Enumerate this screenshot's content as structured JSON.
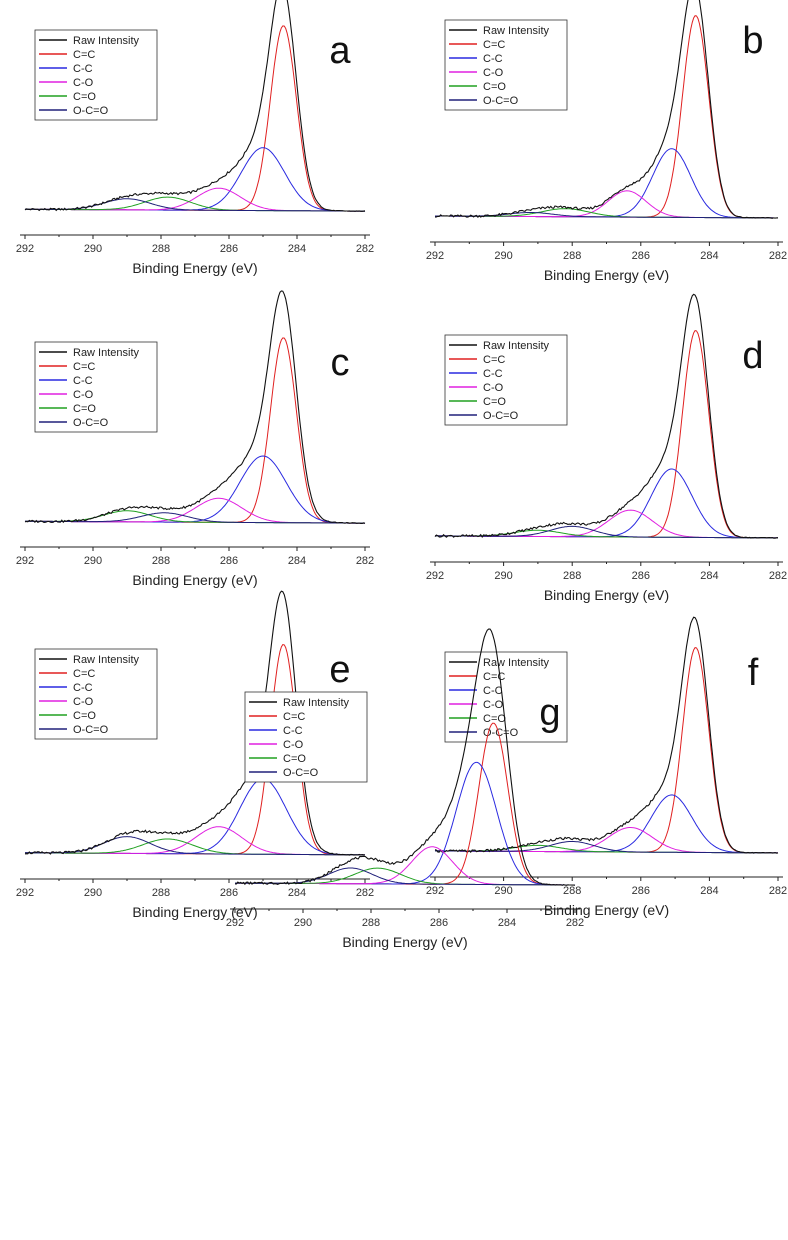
{
  "figure": {
    "series_names": [
      "Raw Intensity",
      "C=C",
      "C-C",
      "C-O",
      "C=O",
      "O-C=O"
    ],
    "colors": {
      "Raw Intensity": "#111111",
      "C=C": "#e02020",
      "C-C": "#2a2ae0",
      "C-O": "#e020e0",
      "C=O": "#20a020",
      "O-C=O": "#20207a"
    }
  },
  "chart_data": [
    {
      "panel": "a",
      "type": "line",
      "xlabel": "Binding Energy (eV)",
      "xlim": [
        292,
        282
      ],
      "x_reversed": true,
      "xticks": [
        292,
        290,
        288,
        286,
        284,
        282
      ],
      "grid": false,
      "legend_position": "top-left",
      "peaks": [
        {
          "name": "C=C",
          "center": 284.4,
          "fwhm": 0.9,
          "height": 1.0
        },
        {
          "name": "C-C",
          "center": 285.0,
          "fwhm": 1.5,
          "height": 0.34
        },
        {
          "name": "C-O",
          "center": 286.3,
          "fwhm": 1.5,
          "height": 0.12
        },
        {
          "name": "C=O",
          "center": 287.8,
          "fwhm": 1.6,
          "height": 0.07
        },
        {
          "name": "O-C=O",
          "center": 289.0,
          "fwhm": 1.6,
          "height": 0.06
        }
      ],
      "baseline": [
        0.02,
        0.01
      ]
    },
    {
      "panel": "b",
      "type": "line",
      "xlabel": "Binding Energy (eV)",
      "xlim": [
        292,
        282
      ],
      "x_reversed": true,
      "xticks": [
        292,
        290,
        288,
        286,
        284,
        282
      ],
      "grid": false,
      "legend_position": "top-left",
      "peaks": [
        {
          "name": "C=C",
          "center": 284.4,
          "fwhm": 0.9,
          "height": 1.0
        },
        {
          "name": "C-C",
          "center": 285.1,
          "fwhm": 1.3,
          "height": 0.34
        },
        {
          "name": "C-O",
          "center": 286.4,
          "fwhm": 1.3,
          "height": 0.13
        },
        {
          "name": "C=O",
          "center": 288.2,
          "fwhm": 1.6,
          "height": 0.04
        },
        {
          "name": "O-C=O",
          "center": 289.2,
          "fwhm": 1.5,
          "height": 0.02
        }
      ],
      "baseline": [
        0.02,
        0.01
      ]
    },
    {
      "panel": "c",
      "type": "line",
      "xlabel": "Binding Energy (eV)",
      "xlim": [
        292,
        282
      ],
      "x_reversed": true,
      "xticks": [
        292,
        290,
        288,
        286,
        284,
        282
      ],
      "grid": false,
      "legend_position": "top-left",
      "peaks": [
        {
          "name": "C=C",
          "center": 284.4,
          "fwhm": 0.9,
          "height": 1.0
        },
        {
          "name": "C-C",
          "center": 285.0,
          "fwhm": 1.6,
          "height": 0.36
        },
        {
          "name": "C-O",
          "center": 286.3,
          "fwhm": 1.6,
          "height": 0.13
        },
        {
          "name": "C=O",
          "center": 289.0,
          "fwhm": 1.6,
          "height": 0.06
        },
        {
          "name": "O-C=O",
          "center": 287.9,
          "fwhm": 1.6,
          "height": 0.05
        }
      ],
      "baseline": [
        0.02,
        0.01
      ]
    },
    {
      "panel": "d",
      "type": "line",
      "xlabel": "Binding Energy (eV)",
      "xlim": [
        292,
        282
      ],
      "x_reversed": true,
      "xticks": [
        292,
        290,
        288,
        286,
        284,
        282
      ],
      "grid": false,
      "legend_position": "top-left",
      "peaks": [
        {
          "name": "C=C",
          "center": 284.4,
          "fwhm": 0.9,
          "height": 1.0
        },
        {
          "name": "C-C",
          "center": 285.1,
          "fwhm": 1.4,
          "height": 0.33
        },
        {
          "name": "C-O",
          "center": 286.3,
          "fwhm": 1.5,
          "height": 0.13
        },
        {
          "name": "C=O",
          "center": 289.0,
          "fwhm": 1.6,
          "height": 0.03
        },
        {
          "name": "O-C=O",
          "center": 288.0,
          "fwhm": 1.5,
          "height": 0.05
        }
      ],
      "baseline": [
        0.02,
        0.01
      ]
    },
    {
      "panel": "e",
      "type": "line",
      "xlabel": "Binding Energy (eV)",
      "xlim": [
        292,
        282
      ],
      "x_reversed": true,
      "xticks": [
        292,
        290,
        288,
        286,
        284,
        282
      ],
      "grid": false,
      "legend_position": "top-left",
      "peaks": [
        {
          "name": "C=C",
          "center": 284.4,
          "fwhm": 0.9,
          "height": 1.0
        },
        {
          "name": "C-C",
          "center": 285.0,
          "fwhm": 1.6,
          "height": 0.36
        },
        {
          "name": "C-O",
          "center": 286.3,
          "fwhm": 1.6,
          "height": 0.13
        },
        {
          "name": "C=O",
          "center": 287.8,
          "fwhm": 1.7,
          "height": 0.07
        },
        {
          "name": "O-C=O",
          "center": 289.0,
          "fwhm": 1.6,
          "height": 0.08
        }
      ],
      "baseline": [
        0.02,
        0.01
      ]
    },
    {
      "panel": "f",
      "type": "line",
      "xlabel": "Binding Energy (eV)",
      "xlim": [
        292,
        282
      ],
      "x_reversed": true,
      "xticks": [
        292,
        290,
        288,
        286,
        284,
        282
      ],
      "grid": false,
      "legend_position": "top-left",
      "peaks": [
        {
          "name": "C=C",
          "center": 284.4,
          "fwhm": 0.9,
          "height": 1.0
        },
        {
          "name": "C-C",
          "center": 285.1,
          "fwhm": 1.4,
          "height": 0.28
        },
        {
          "name": "C-O",
          "center": 286.3,
          "fwhm": 1.5,
          "height": 0.12
        },
        {
          "name": "C=O",
          "center": 289.0,
          "fwhm": 1.6,
          "height": 0.03
        },
        {
          "name": "O-C=O",
          "center": 288.0,
          "fwhm": 1.5,
          "height": 0.05
        }
      ],
      "baseline": [
        0.02,
        0.01
      ]
    },
    {
      "panel": "g",
      "type": "line",
      "xlabel": "Binding Energy (eV)",
      "xlim": [
        292,
        282
      ],
      "x_reversed": true,
      "xticks": [
        292,
        290,
        288,
        286,
        284,
        282
      ],
      "grid": false,
      "legend_position": "top-left",
      "peaks": [
        {
          "name": "C=C",
          "center": 284.4,
          "fwhm": 1.0,
          "height": 0.82
        },
        {
          "name": "C-C",
          "center": 284.9,
          "fwhm": 1.4,
          "height": 0.62
        },
        {
          "name": "C-O",
          "center": 286.2,
          "fwhm": 1.4,
          "height": 0.19
        },
        {
          "name": "C=O",
          "center": 287.8,
          "fwhm": 1.6,
          "height": 0.08
        },
        {
          "name": "O-C=O",
          "center": 288.6,
          "fwhm": 1.5,
          "height": 0.08
        }
      ],
      "baseline": [
        0.02,
        0.01
      ]
    }
  ]
}
